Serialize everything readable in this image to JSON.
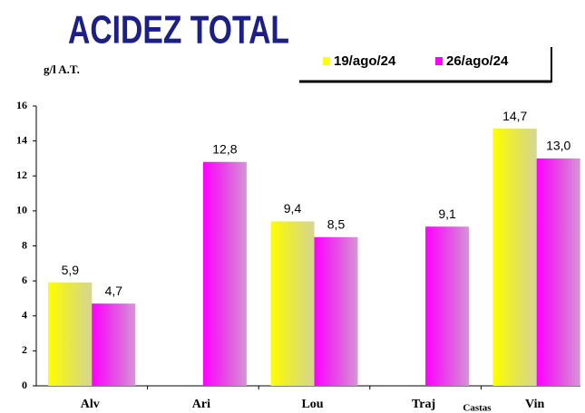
{
  "chart_data": {
    "type": "bar",
    "title": "ACIDEZ TOTAL",
    "y_label": "g/l A.T.",
    "x_label": "Castas",
    "categories": [
      "Alv",
      "Ari",
      "Lou",
      "Traj",
      "Vin"
    ],
    "series": [
      {
        "name": "19/ago/24",
        "color": "#ffff00",
        "values": [
          5.9,
          null,
          9.4,
          null,
          14.7
        ],
        "value_labels": [
          "5,9",
          null,
          "9,4",
          null,
          "14,7"
        ]
      },
      {
        "name": "26/ago/24",
        "color": "#ff00ff",
        "values": [
          4.7,
          12.8,
          8.5,
          9.1,
          13.0
        ],
        "value_labels": [
          "4,7",
          "12,8",
          "8,5",
          "9,1",
          "13,0"
        ]
      }
    ],
    "ylim": [
      0,
      16
    ],
    "yticks": [
      0,
      2,
      4,
      6,
      8,
      10,
      12,
      14,
      16
    ],
    "legend": "top-right"
  }
}
